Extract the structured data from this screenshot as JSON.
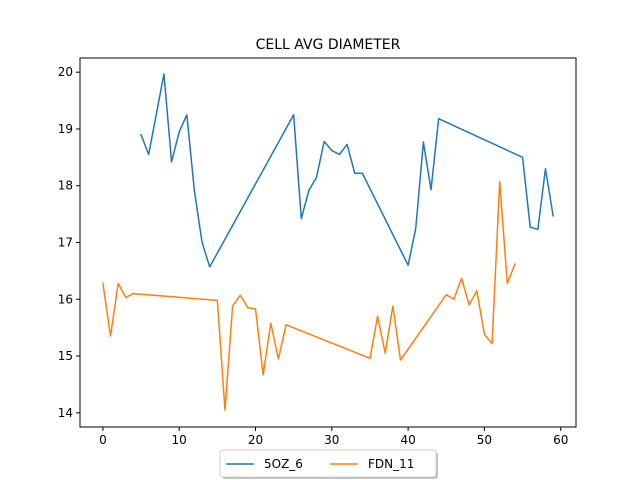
{
  "chart_data": {
    "type": "line",
    "title": "CELL AVG  DIAMETER",
    "xlabel": "",
    "ylabel": "",
    "xlim": [
      -3,
      62
    ],
    "ylim": [
      13.75,
      20.25
    ],
    "xticks": [
      0,
      10,
      20,
      30,
      40,
      50,
      60
    ],
    "yticks": [
      14,
      15,
      16,
      17,
      18,
      19,
      20
    ],
    "grid": false,
    "legend_position": "bottom-center",
    "series": [
      {
        "name": "5OZ_6",
        "color": "#1f77b4",
        "points": [
          [
            5,
            18.9
          ],
          [
            6,
            18.55
          ],
          [
            8,
            19.97
          ],
          [
            9,
            18.42
          ],
          [
            10,
            18.95
          ],
          [
            11,
            19.25
          ],
          [
            12,
            17.9
          ],
          [
            13,
            17.0
          ],
          [
            14,
            16.57
          ],
          [
            25,
            19.25
          ],
          [
            26,
            17.42
          ],
          [
            27,
            17.92
          ],
          [
            28,
            18.15
          ],
          [
            29,
            18.78
          ],
          [
            30,
            18.62
          ],
          [
            31,
            18.55
          ],
          [
            32,
            18.73
          ],
          [
            33,
            18.22
          ],
          [
            34,
            18.22
          ],
          [
            40,
            16.6
          ],
          [
            41,
            17.25
          ],
          [
            42,
            18.77
          ],
          [
            43,
            17.93
          ],
          [
            44,
            19.18
          ],
          [
            55,
            18.5
          ],
          [
            56,
            17.27
          ],
          [
            57,
            17.23
          ],
          [
            58,
            18.3
          ],
          [
            59,
            17.47
          ]
        ]
      },
      {
        "name": "FDN_11",
        "color": "#ff7f0e",
        "points": [
          [
            0,
            16.28
          ],
          [
            1,
            15.35
          ],
          [
            2,
            16.28
          ],
          [
            3,
            16.03
          ],
          [
            4,
            16.1
          ],
          [
            15,
            15.98
          ],
          [
            16,
            14.05
          ],
          [
            17,
            15.88
          ],
          [
            18,
            16.07
          ],
          [
            19,
            15.85
          ],
          [
            20,
            15.83
          ],
          [
            21,
            14.67
          ],
          [
            22,
            15.58
          ],
          [
            23,
            14.95
          ],
          [
            24,
            15.55
          ],
          [
            35,
            14.96
          ],
          [
            36,
            15.7
          ],
          [
            37,
            15.05
          ],
          [
            38,
            15.88
          ],
          [
            39,
            14.93
          ],
          [
            45,
            16.08
          ],
          [
            46,
            16.0
          ],
          [
            47,
            16.37
          ],
          [
            48,
            15.9
          ],
          [
            49,
            16.15
          ],
          [
            50,
            15.38
          ],
          [
            51,
            15.22
          ],
          [
            52,
            18.07
          ],
          [
            53,
            16.28
          ],
          [
            54,
            16.62
          ]
        ]
      }
    ]
  }
}
